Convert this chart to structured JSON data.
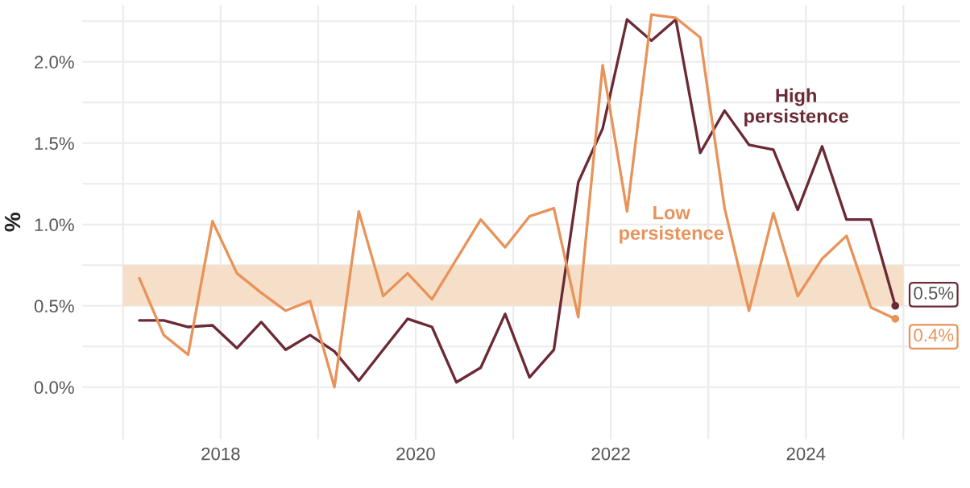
{
  "chart_data": {
    "type": "line",
    "ylabel": "%",
    "x": [
      "2017-03",
      "2017-06",
      "2017-09",
      "2017-12",
      "2018-03",
      "2018-06",
      "2018-09",
      "2018-12",
      "2019-03",
      "2019-06",
      "2019-09",
      "2019-12",
      "2020-03",
      "2020-06",
      "2020-09",
      "2020-12",
      "2021-03",
      "2021-06",
      "2021-09",
      "2021-12",
      "2022-03",
      "2022-06",
      "2022-09",
      "2022-12",
      "2023-03",
      "2023-06",
      "2023-09",
      "2023-12",
      "2024-03",
      "2024-06",
      "2024-09",
      "2024-12"
    ],
    "series": [
      {
        "name": "High persistence",
        "color": "#6b2a35",
        "values": [
          0.41,
          0.41,
          0.37,
          0.38,
          0.24,
          0.4,
          0.23,
          0.32,
          0.22,
          0.04,
          0.23,
          0.42,
          0.37,
          0.03,
          0.12,
          0.45,
          0.06,
          0.23,
          1.26,
          1.59,
          2.26,
          2.13,
          2.26,
          1.44,
          1.7,
          1.49,
          1.46,
          1.09,
          1.48,
          1.03,
          1.03,
          0.5
        ],
        "value_labels": [
          null,
          null,
          null,
          null,
          null,
          null,
          null,
          null,
          null,
          null,
          null,
          null,
          null,
          null,
          null,
          null,
          null,
          null,
          null,
          null,
          null,
          null,
          null,
          null,
          null,
          null,
          null,
          null,
          null,
          null,
          null,
          "0.5%"
        ]
      },
      {
        "name": "Low persistence",
        "color": "#e8935a",
        "values": [
          0.67,
          0.32,
          0.2,
          1.02,
          0.7,
          0.58,
          0.47,
          0.53,
          0.0,
          1.08,
          0.56,
          0.7,
          0.54,
          null,
          1.03,
          0.86,
          1.05,
          1.1,
          0.43,
          1.98,
          1.08,
          2.29,
          2.27,
          2.15,
          1.1,
          0.47,
          1.07,
          0.56,
          0.79,
          0.93,
          0.49,
          0.42
        ],
        "value_labels": [
          null,
          null,
          null,
          null,
          null,
          null,
          null,
          null,
          null,
          null,
          null,
          null,
          null,
          null,
          null,
          null,
          null,
          null,
          null,
          null,
          null,
          null,
          null,
          null,
          null,
          null,
          null,
          null,
          null,
          null,
          null,
          "0.4%"
        ]
      }
    ],
    "ylim": [
      -0.32,
      2.35
    ],
    "yticks": [
      {
        "value": 0,
        "label": "0.0%"
      },
      {
        "value": 0.25,
        "label": null
      },
      {
        "value": 0.5,
        "label": "0.5%"
      },
      {
        "value": 0.75,
        "label": null
      },
      {
        "value": 1.0,
        "label": "1.0%"
      },
      {
        "value": 1.25,
        "label": null
      },
      {
        "value": 1.5,
        "label": "1.5%"
      },
      {
        "value": 1.75,
        "label": null
      },
      {
        "value": 2.0,
        "label": "2.0%"
      },
      {
        "value": 2.25,
        "label": null
      }
    ],
    "xlim": [
      "2016-08",
      "2025-08"
    ],
    "xticks": [
      {
        "value": "2017",
        "label": null
      },
      {
        "value": "2018",
        "label": "2018"
      },
      {
        "value": "2019",
        "label": null
      },
      {
        "value": "2020",
        "label": "2020"
      },
      {
        "value": "2021",
        "label": null
      },
      {
        "value": "2022",
        "label": "2022"
      },
      {
        "value": "2023",
        "label": null
      },
      {
        "value": "2024",
        "label": "2024"
      },
      {
        "value": "2025",
        "label": null
      }
    ],
    "bands": [
      {
        "axis": "y",
        "from": 0.5,
        "to": 0.75,
        "color": "#f5dfc9"
      }
    ],
    "grid": true,
    "legend": false,
    "marker": "none",
    "line_style": "solid"
  }
}
